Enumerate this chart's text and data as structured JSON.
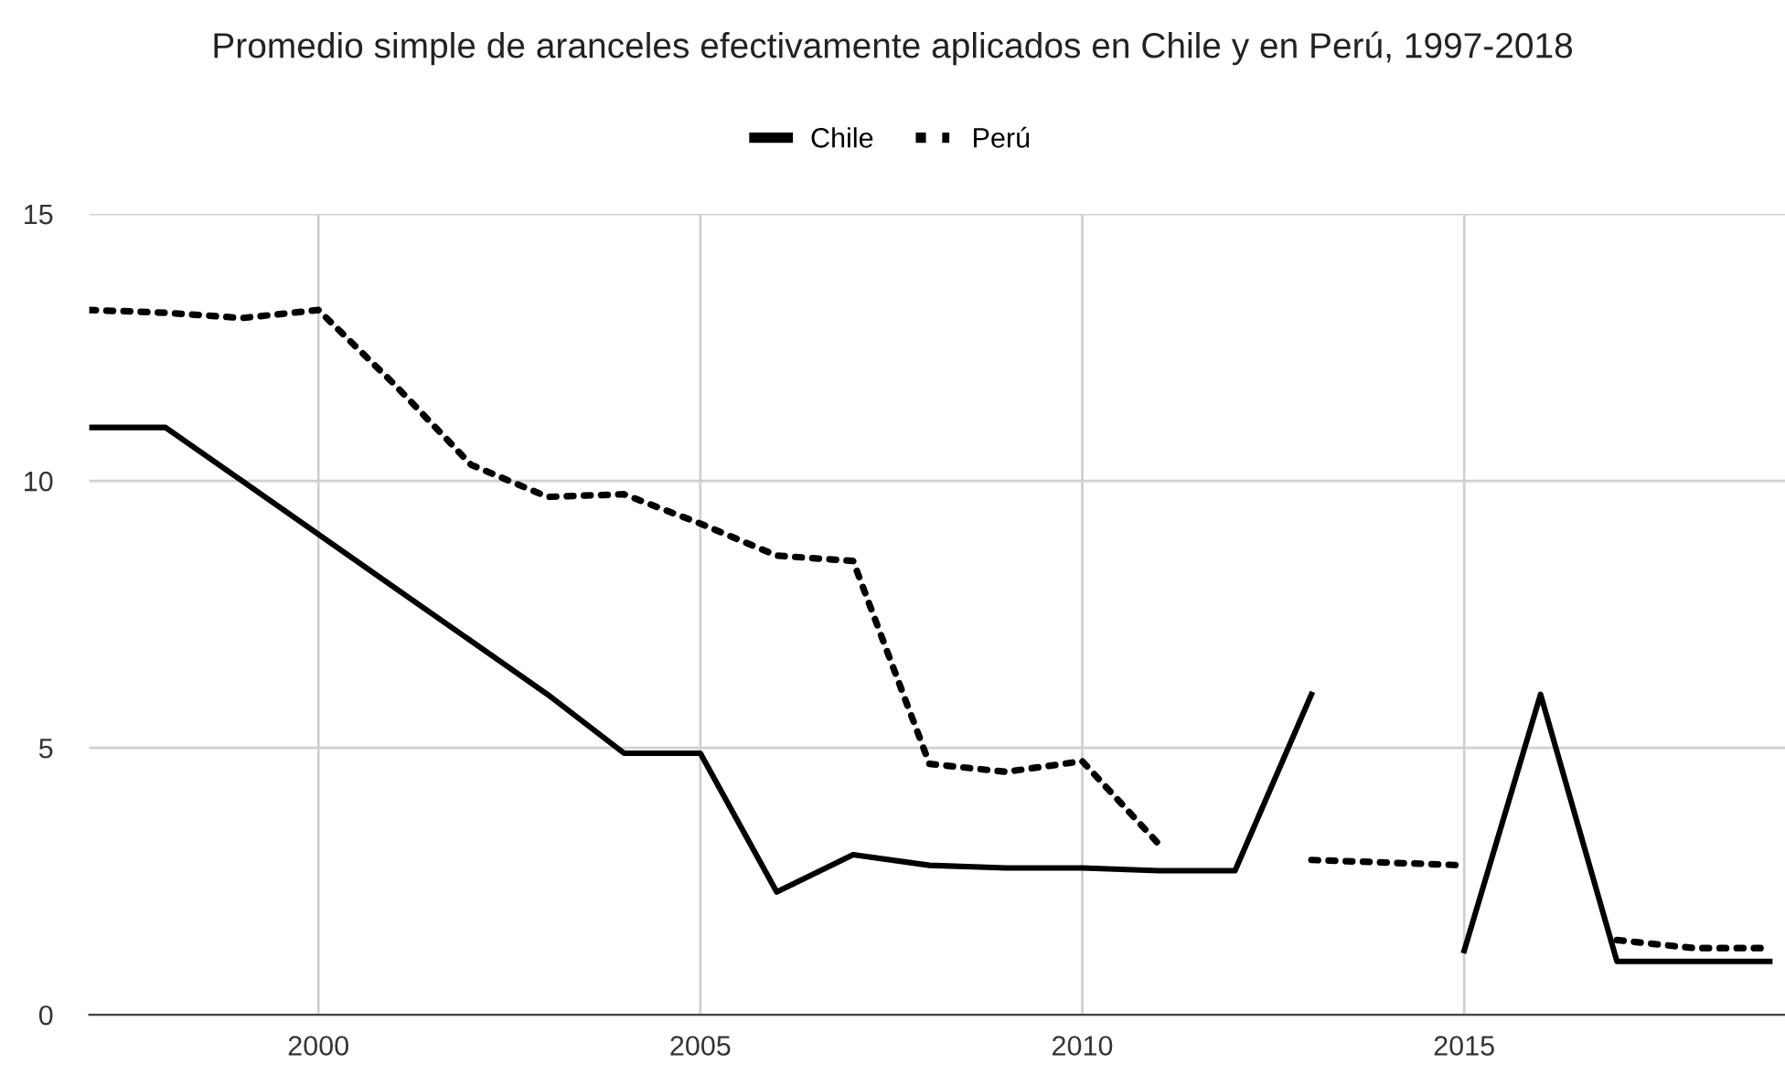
{
  "chart_data": {
    "type": "line",
    "title": "Promedio simple de aranceles efectivamente aplicados en Chile y en Perú, 1997-2018",
    "x": [
      1997,
      1998,
      1999,
      2000,
      2001,
      2002,
      2003,
      2004,
      2005,
      2006,
      2007,
      2008,
      2009,
      2010,
      2011,
      2012,
      2013,
      2014,
      2015,
      2016,
      2017,
      2018,
      2019
    ],
    "series": [
      {
        "name": "Chile",
        "color": "#000000",
        "line_style": "solid",
        "values": [
          11,
          11,
          10,
          9,
          8,
          7,
          6,
          4.9,
          4.9,
          2.3,
          3.0,
          2.8,
          2.75,
          2.75,
          2.7,
          2.7,
          6.0,
          null,
          1.2,
          6.0,
          1.0,
          1.0,
          1.0
        ]
      },
      {
        "name": "Perú",
        "color": "#000000",
        "line_style": "dotted",
        "values": [
          13.2,
          13.15,
          13.05,
          13.2,
          11.8,
          10.3,
          9.7,
          9.75,
          9.2,
          8.6,
          8.5,
          4.7,
          4.55,
          4.75,
          3.2,
          null,
          2.9,
          2.85,
          2.8,
          null,
          1.4,
          1.25,
          1.25
        ]
      }
    ],
    "xlim": [
      1997,
      2019.2
    ],
    "ylim": [
      0,
      15
    ],
    "xticks": [
      2000,
      2005,
      2010,
      2015
    ],
    "yticks": [
      0,
      5,
      10,
      15
    ],
    "grid": true,
    "legend": "top",
    "marker": "none"
  }
}
